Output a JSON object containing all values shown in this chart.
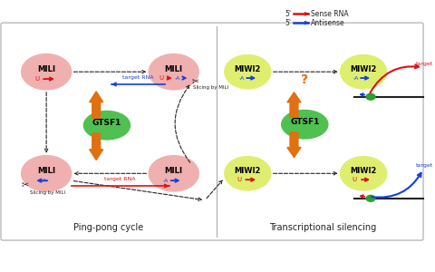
{
  "bg_color": "#ffffff",
  "left_panel_label": "Ping-pong cycle",
  "right_panel_label": "Transcriptional silencing",
  "legend_sense": "Sense RNA",
  "legend_antisense": "Antisense",
  "mili_color": "#f0b0b0",
  "miwi2_color": "#e0ee70",
  "gtsf1_color": "#50c050",
  "orange_color": "#e07010",
  "red_color": "#dd1010",
  "blue_color": "#1040dd",
  "black_color": "#222222",
  "panel_edge": "#aaaaaa",
  "green_dot": "#30a030"
}
